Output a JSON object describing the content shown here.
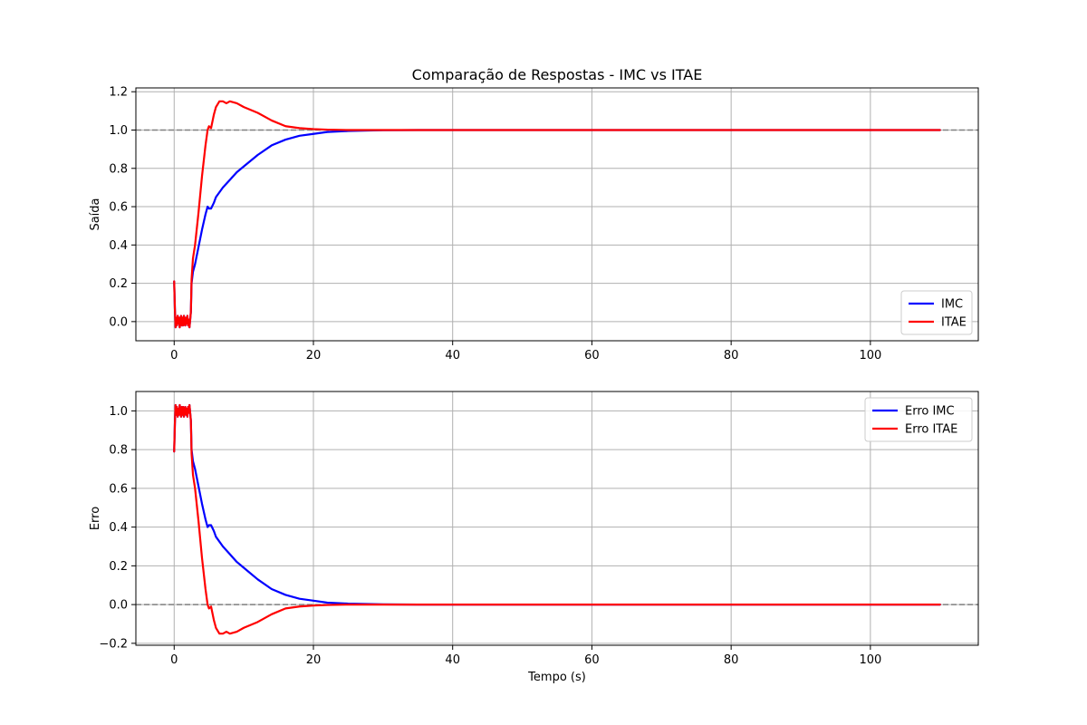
{
  "figure": {
    "title": "Comparação de Respostas - IMC vs ITAE",
    "colors": {
      "imc": "#0000ff",
      "itae": "#ff0000",
      "reference": "#808080",
      "grid": "#b0b0b0"
    }
  },
  "chart_data": [
    {
      "type": "line",
      "title": "Comparação de Respostas - IMC vs ITAE",
      "xlabel": "",
      "ylabel": "Saída",
      "xlim": [
        -5.5,
        115.5
      ],
      "ylim": [
        -0.1,
        1.22
      ],
      "xticks": [
        0,
        20,
        40,
        60,
        80,
        100
      ],
      "yticks": [
        0.0,
        0.2,
        0.4,
        0.6,
        0.8,
        1.0,
        1.2
      ],
      "xtick_labels": [
        "0",
        "20",
        "40",
        "60",
        "80",
        "100"
      ],
      "ytick_labels": [
        "0.0",
        "0.2",
        "0.4",
        "0.6",
        "0.8",
        "1.0",
        "1.2"
      ],
      "grid": true,
      "legend_position": "lower-right",
      "reference_line": {
        "y": 1.0,
        "style": "dashed",
        "color": "#808080"
      },
      "series": [
        {
          "name": "IMC",
          "color": "#0000ff",
          "x": [
            0,
            0.1,
            0.2,
            0.3,
            0.4,
            0.5,
            0.6,
            0.7,
            0.8,
            0.9,
            1.0,
            1.1,
            1.2,
            1.3,
            1.4,
            1.5,
            1.6,
            1.7,
            1.8,
            1.9,
            2.0,
            2.1,
            2.2,
            2.3,
            2.4,
            2.5,
            2.7,
            3,
            3.5,
            4,
            4.5,
            4.8,
            5,
            5.3,
            5.7,
            6,
            7,
            8,
            9,
            10,
            12,
            14,
            16,
            18,
            20,
            22,
            25,
            30,
            35,
            40,
            50,
            60,
            70,
            80,
            90,
            100,
            110
          ],
          "y": [
            0.21,
            0.07,
            -0.03,
            0.02,
            -0.02,
            0.03,
            -0.01,
            0.02,
            -0.03,
            0.01,
            0.03,
            -0.02,
            0.02,
            -0.02,
            0.03,
            0.0,
            -0.02,
            0.02,
            -0.01,
            0.03,
            -0.02,
            0.01,
            -0.03,
            0.01,
            0.05,
            0.2,
            0.26,
            0.3,
            0.39,
            0.48,
            0.56,
            0.6,
            0.59,
            0.59,
            0.62,
            0.65,
            0.7,
            0.74,
            0.78,
            0.81,
            0.87,
            0.92,
            0.95,
            0.97,
            0.98,
            0.99,
            0.995,
            0.999,
            1.0,
            1.0,
            1.0,
            1.0,
            1.0,
            1.0,
            1.0,
            1.0,
            1.0
          ]
        },
        {
          "name": "ITAE",
          "color": "#ff0000",
          "x": [
            0,
            0.1,
            0.2,
            0.3,
            0.4,
            0.5,
            0.6,
            0.7,
            0.8,
            0.9,
            1.0,
            1.1,
            1.2,
            1.3,
            1.4,
            1.5,
            1.6,
            1.7,
            1.8,
            1.9,
            2.0,
            2.1,
            2.2,
            2.3,
            2.4,
            2.5,
            2.7,
            3,
            3.5,
            4,
            4.5,
            4.8,
            5,
            5.3,
            5.7,
            6,
            6.5,
            7,
            7.5,
            8,
            9,
            10,
            12,
            14,
            16,
            18,
            20,
            22,
            25,
            30,
            40,
            50,
            60,
            70,
            80,
            90,
            100,
            110
          ],
          "y": [
            0.21,
            0.07,
            -0.03,
            0.02,
            -0.02,
            0.03,
            -0.01,
            0.02,
            -0.03,
            0.01,
            0.03,
            -0.02,
            0.02,
            -0.02,
            0.03,
            0.0,
            -0.02,
            0.02,
            -0.01,
            0.03,
            -0.02,
            0.01,
            -0.03,
            0.01,
            0.05,
            0.22,
            0.33,
            0.4,
            0.57,
            0.76,
            0.92,
            1.0,
            1.02,
            1.01,
            1.08,
            1.12,
            1.15,
            1.15,
            1.14,
            1.15,
            1.14,
            1.12,
            1.09,
            1.05,
            1.02,
            1.01,
            1.005,
            1.002,
            1.0,
            1.0,
            1.0,
            1.0,
            1.0,
            1.0,
            1.0,
            1.0,
            1.0,
            1.0
          ]
        }
      ]
    },
    {
      "type": "line",
      "title": "",
      "xlabel": "Tempo (s)",
      "ylabel": "Erro",
      "xlim": [
        -5.5,
        115.5
      ],
      "ylim": [
        -0.21,
        1.1
      ],
      "xticks": [
        0,
        20,
        40,
        60,
        80,
        100
      ],
      "yticks": [
        -0.2,
        0.0,
        0.2,
        0.4,
        0.6,
        0.8,
        1.0
      ],
      "xtick_labels": [
        "0",
        "20",
        "40",
        "60",
        "80",
        "100"
      ],
      "ytick_labels": [
        "−0.2",
        "0.0",
        "0.2",
        "0.4",
        "0.6",
        "0.8",
        "1.0"
      ],
      "grid": true,
      "legend_position": "upper-right",
      "reference_line": {
        "y": 0.0,
        "style": "dashed",
        "color": "#808080"
      },
      "series": [
        {
          "name": "Erro IMC",
          "color": "#0000ff",
          "x": [
            0,
            0.1,
            0.2,
            0.3,
            0.4,
            0.5,
            0.6,
            0.7,
            0.8,
            0.9,
            1.0,
            1.1,
            1.2,
            1.3,
            1.4,
            1.5,
            1.6,
            1.7,
            1.8,
            1.9,
            2.0,
            2.1,
            2.2,
            2.3,
            2.4,
            2.5,
            2.7,
            3,
            3.5,
            4,
            4.5,
            4.8,
            5,
            5.3,
            5.7,
            6,
            7,
            8,
            9,
            10,
            12,
            14,
            16,
            18,
            20,
            22,
            25,
            30,
            35,
            40,
            50,
            60,
            70,
            80,
            90,
            100,
            110
          ],
          "y": [
            0.79,
            0.93,
            1.03,
            0.98,
            1.02,
            0.97,
            1.01,
            0.98,
            1.03,
            0.99,
            0.97,
            1.02,
            0.98,
            1.02,
            0.97,
            1.0,
            1.02,
            0.98,
            1.01,
            0.97,
            1.02,
            0.99,
            1.03,
            0.99,
            0.95,
            0.8,
            0.74,
            0.7,
            0.61,
            0.52,
            0.44,
            0.4,
            0.41,
            0.41,
            0.38,
            0.35,
            0.3,
            0.26,
            0.22,
            0.19,
            0.13,
            0.08,
            0.05,
            0.03,
            0.02,
            0.01,
            0.005,
            0.001,
            0.0,
            0.0,
            0.0,
            0.0,
            0.0,
            0.0,
            0.0,
            0.0,
            0.0
          ]
        },
        {
          "name": "Erro ITAE",
          "color": "#ff0000",
          "x": [
            0,
            0.1,
            0.2,
            0.3,
            0.4,
            0.5,
            0.6,
            0.7,
            0.8,
            0.9,
            1.0,
            1.1,
            1.2,
            1.3,
            1.4,
            1.5,
            1.6,
            1.7,
            1.8,
            1.9,
            2.0,
            2.1,
            2.2,
            2.3,
            2.4,
            2.5,
            2.7,
            3,
            3.5,
            4,
            4.5,
            4.8,
            5,
            5.3,
            5.7,
            6,
            6.5,
            7,
            7.5,
            8,
            9,
            10,
            12,
            14,
            16,
            18,
            20,
            22,
            25,
            30,
            40,
            50,
            60,
            70,
            80,
            90,
            100,
            110
          ],
          "y": [
            0.79,
            0.93,
            1.03,
            0.98,
            1.02,
            0.97,
            1.01,
            0.98,
            1.03,
            0.99,
            0.97,
            1.02,
            0.98,
            1.02,
            0.97,
            1.0,
            1.02,
            0.98,
            1.01,
            0.97,
            1.02,
            0.99,
            1.03,
            0.99,
            0.95,
            0.78,
            0.67,
            0.6,
            0.43,
            0.24,
            0.08,
            0.0,
            -0.02,
            -0.01,
            -0.08,
            -0.12,
            -0.15,
            -0.15,
            -0.14,
            -0.15,
            -0.14,
            -0.12,
            -0.09,
            -0.05,
            -0.02,
            -0.01,
            -0.005,
            -0.002,
            0.0,
            0.0,
            0.0,
            0.0,
            0.0,
            0.0,
            0.0,
            0.0,
            0.0,
            0.0
          ]
        }
      ]
    }
  ]
}
